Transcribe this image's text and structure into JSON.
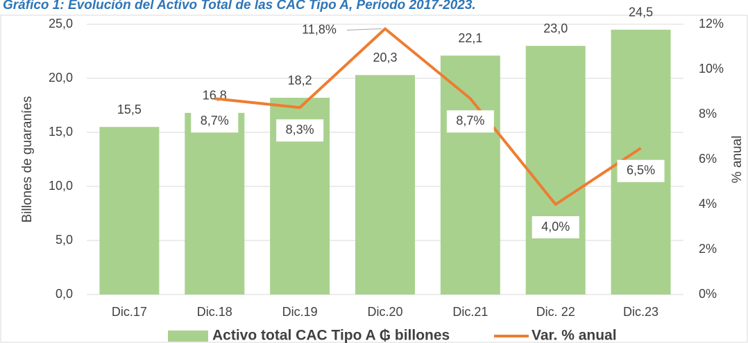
{
  "chart_data": {
    "type": "bar_line",
    "title": "Gráfico 1: Evolución del Activo Total de las CAC Tipo A, Período 2017-2023.",
    "categories": [
      "Dic.17",
      "Dic.18",
      "Dic.19",
      "Dic.20",
      "Dic.21",
      "Dic. 22",
      "Dic.23"
    ],
    "y_label": "Billones de guaraníes",
    "y2_label": "% anual",
    "series": [
      {
        "name": "Activo total CAC Tipo A ₲ billones",
        "color": "#a9d18e",
        "values": [
          15.5,
          16.8,
          18.2,
          20.3,
          22.1,
          23.0,
          24.5
        ],
        "value_labels": [
          "15,5",
          "16,8",
          "18,2",
          "20,3",
          "22,1",
          "23,0",
          "24,5"
        ]
      },
      {
        "name": "Var. % anual",
        "color": "#ed7d31",
        "axis": "y2",
        "values": [
          null,
          8.7,
          8.3,
          11.8,
          8.7,
          4.0,
          6.5
        ],
        "value_labels": [
          null,
          "8,7%",
          "8,3%",
          "11,8%",
          "8,7%",
          "4,0%",
          "6,5%"
        ]
      }
    ],
    "ylim": [
      0,
      25
    ],
    "yticks": [
      {
        "value": 0,
        "label": "0,0"
      },
      {
        "value": 5,
        "label": "5,0"
      },
      {
        "value": 10,
        "label": "10,0"
      },
      {
        "value": 15,
        "label": "15,0"
      },
      {
        "value": 20,
        "label": "20,0"
      },
      {
        "value": 25,
        "label": "25,0"
      }
    ],
    "y2lim": [
      0,
      12
    ],
    "y2ticks": [
      {
        "value": 0,
        "label": "0%"
      },
      {
        "value": 2,
        "label": "2%"
      },
      {
        "value": 4,
        "label": "4%"
      },
      {
        "value": 6,
        "label": "6%"
      },
      {
        "value": 8,
        "label": "8%"
      },
      {
        "value": 10,
        "label": "10%"
      },
      {
        "value": 12,
        "label": "12%"
      }
    ],
    "grid": true
  }
}
